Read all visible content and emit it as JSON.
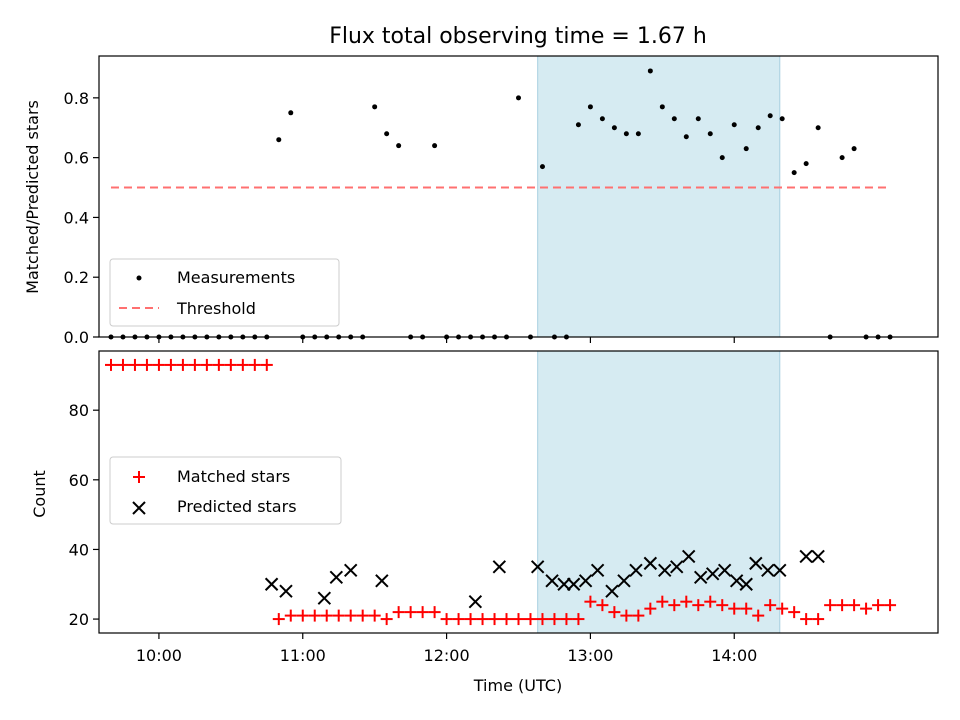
{
  "chart_data": [
    {
      "type": "scatter",
      "title": "Flux total observing time = 1.67 h",
      "xlabel": "",
      "ylabel": "Matched/Predicted stars",
      "ylim": [
        0,
        0.94
      ],
      "yticks": [
        "0.0",
        "0.2",
        "0.4",
        "0.6",
        "0.8"
      ],
      "xlim": [
        "09:35",
        "15:25"
      ],
      "highlight_span": [
        "12:38",
        "14:19"
      ],
      "threshold": {
        "value": 0.5,
        "from": "09:40",
        "to": "15:05"
      },
      "legend": [
        {
          "label": "Measurements",
          "marker": "dot",
          "color": "#000000"
        },
        {
          "label": "Threshold",
          "marker": "dashed-line",
          "color": "#ff7070"
        }
      ],
      "legend_loc": "lower left",
      "series": [
        {
          "name": "Measurements",
          "x": [
            "09:40",
            "09:45",
            "09:50",
            "09:55",
            "10:00",
            "10:05",
            "10:10",
            "10:15",
            "10:20",
            "10:25",
            "10:30",
            "10:35",
            "10:40",
            "10:45",
            "10:50",
            "10:55",
            "11:00",
            "11:05",
            "11:10",
            "11:15",
            "11:20",
            "11:25",
            "11:30",
            "11:35",
            "11:40",
            "11:45",
            "11:50",
            "11:55",
            "12:00",
            "12:05",
            "12:10",
            "12:15",
            "12:20",
            "12:25",
            "12:30",
            "12:35",
            "12:40",
            "12:45",
            "12:50",
            "12:55",
            "13:00",
            "13:05",
            "13:10",
            "13:15",
            "13:20",
            "13:25",
            "13:30",
            "13:35",
            "13:40",
            "13:45",
            "13:50",
            "13:55",
            "14:00",
            "14:05",
            "14:10",
            "14:15",
            "14:20",
            "14:25",
            "14:30",
            "14:35",
            "14:40",
            "14:45",
            "14:50",
            "14:55",
            "15:00",
            "15:05"
          ],
          "y": [
            0,
            0,
            0,
            0,
            0,
            0,
            0,
            0,
            0,
            0,
            0,
            0,
            0,
            0,
            0.66,
            0.75,
            0,
            0,
            0,
            0,
            0,
            0,
            0.77,
            0.68,
            0.64,
            0,
            0,
            0.64,
            0,
            0,
            0,
            0,
            0,
            0,
            0.8,
            0,
            0.57,
            0,
            0,
            0.71,
            0.77,
            0.73,
            0.7,
            0.68,
            0.68,
            0.89,
            0.77,
            0.73,
            0.67,
            0.73,
            0.68,
            0.6,
            0.71,
            0.63,
            0.7,
            0.74,
            0.73,
            0.55,
            0.58,
            0.7,
            0,
            0.6,
            0.63,
            0,
            0,
            0
          ],
          "color": "#000000"
        }
      ]
    },
    {
      "type": "scatter",
      "title": "",
      "xlabel": "Time (UTC)",
      "ylabel": "Count",
      "ylim": [
        16,
        97
      ],
      "yticks": [
        "20",
        "40",
        "60",
        "80"
      ],
      "xticks": [
        "10:00",
        "11:00",
        "12:00",
        "13:00",
        "14:00"
      ],
      "xlim": [
        "09:35",
        "15:25"
      ],
      "highlight_span": [
        "12:38",
        "14:19"
      ],
      "legend": [
        {
          "label": "Matched stars",
          "marker": "plus",
          "color": "#ff0000"
        },
        {
          "label": "Predicted stars",
          "marker": "x",
          "color": "#000000"
        }
      ],
      "legend_loc": "center left",
      "series": [
        {
          "name": "Matched stars",
          "x": [
            "09:40",
            "09:45",
            "09:50",
            "09:55",
            "10:00",
            "10:05",
            "10:10",
            "10:15",
            "10:20",
            "10:25",
            "10:30",
            "10:35",
            "10:40",
            "10:45",
            "10:50",
            "10:55",
            "11:00",
            "11:05",
            "11:10",
            "11:15",
            "11:20",
            "11:25",
            "11:30",
            "11:35",
            "11:40",
            "11:45",
            "11:50",
            "11:55",
            "12:00",
            "12:05",
            "12:10",
            "12:15",
            "12:20",
            "12:25",
            "12:30",
            "12:35",
            "12:40",
            "12:45",
            "12:50",
            "12:55",
            "13:00",
            "13:05",
            "13:10",
            "13:15",
            "13:20",
            "13:25",
            "13:30",
            "13:35",
            "13:40",
            "13:45",
            "13:50",
            "13:55",
            "14:00",
            "14:05",
            "14:10",
            "14:15",
            "14:20",
            "14:25",
            "14:30",
            "14:35",
            "14:40",
            "14:45",
            "14:50",
            "14:55",
            "15:00",
            "15:05"
          ],
          "y": [
            93,
            93,
            93,
            93,
            93,
            93,
            93,
            93,
            93,
            93,
            93,
            93,
            93,
            93,
            20,
            21,
            21,
            21,
            21,
            21,
            21,
            21,
            21,
            20,
            22,
            22,
            22,
            22,
            20,
            20,
            20,
            20,
            20,
            20,
            20,
            20,
            20,
            20,
            20,
            20,
            25,
            24,
            22,
            21,
            21,
            23,
            25,
            24,
            25,
            24,
            25,
            24,
            23,
            23,
            21,
            24,
            23,
            22,
            20,
            20,
            24,
            24,
            24,
            23,
            24,
            24
          ],
          "color": "#ff0000"
        },
        {
          "name": "Predicted stars",
          "x": [
            "10:47",
            "10:53",
            "11:09",
            "11:14",
            "11:20",
            "11:33",
            "12:12",
            "12:22",
            "12:38",
            "12:44",
            "12:49",
            "12:53",
            "12:58",
            "13:03",
            "13:09",
            "13:14",
            "13:19",
            "13:25",
            "13:31",
            "13:36",
            "13:41",
            "13:46",
            "13:51",
            "13:56",
            "14:01",
            "14:05",
            "14:09",
            "14:14",
            "14:19",
            "14:30",
            "14:35"
          ],
          "y": [
            30,
            28,
            26,
            32,
            34,
            31,
            25,
            35,
            35,
            31,
            30,
            30,
            31,
            34,
            28,
            31,
            34,
            36,
            34,
            35,
            38,
            32,
            33,
            34,
            31,
            30,
            36,
            34,
            34,
            38,
            38
          ],
          "color": "#000000"
        }
      ]
    }
  ]
}
